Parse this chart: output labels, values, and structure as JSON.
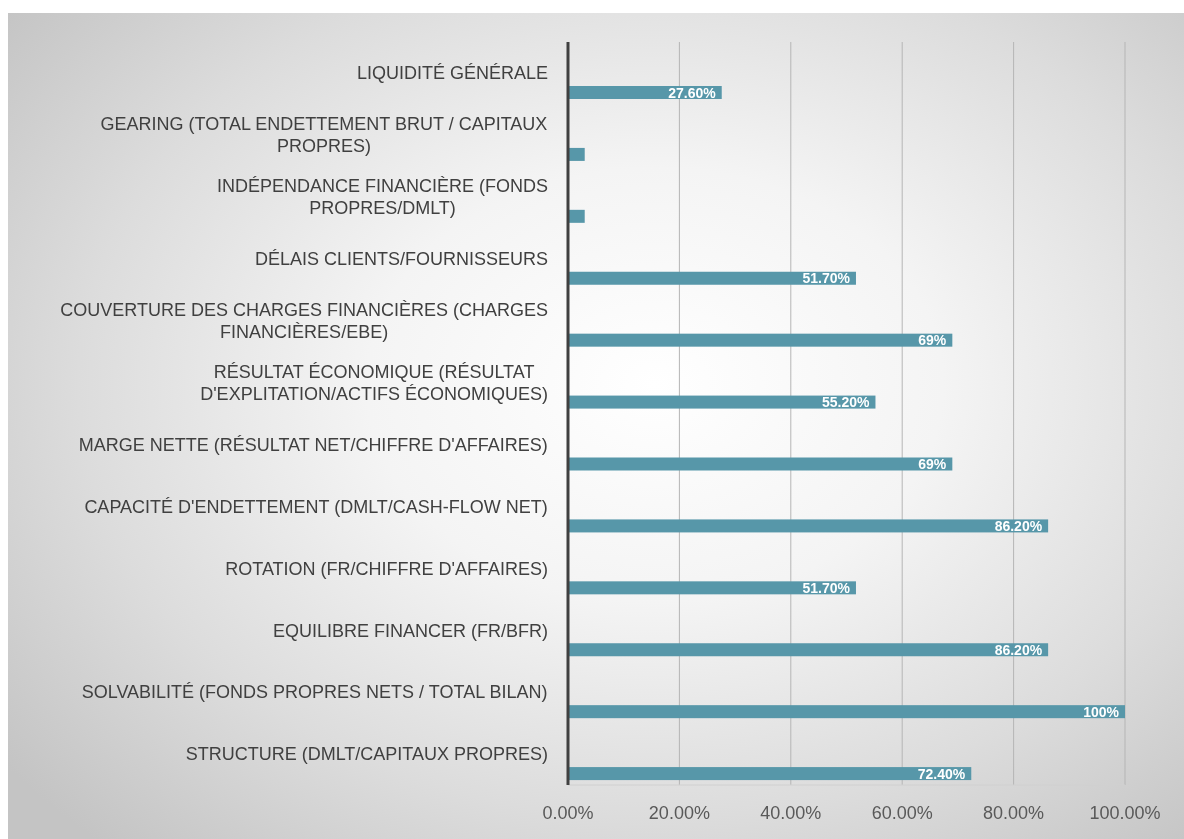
{
  "chart_data": {
    "type": "bar",
    "orientation": "horizontal",
    "categories": [
      "LIQUIDITÉ GÉNÉRALE",
      "GEARING (TOTAL ENDETTEMENT BRUT / CAPITAUX\nPROPRES)",
      "INDÉPENDANCE FINANCIÈRE (FONDS\nPROPRES/DMLT)",
      "DÉLAIS CLIENTS/FOURNISSEURS",
      "COUVERTURE DES CHARGES FINANCIÈRES (CHARGES\nFINANCIÈRES/EBE)",
      "RÉSULTAT ÉCONOMIQUE (RÉSULTAT\nD'EXPLITATION/ACTIFS ÉCONOMIQUES)",
      "MARGE NETTE (RÉSULTAT NET/CHIFFRE D'AFFAIRES)",
      "CAPACITÉ D'ENDETTEMENT (DMLT/CASH-FLOW NET)",
      "ROTATION (FR/CHIFFRE D'AFFAIRES)",
      "EQUILIBRE FINANCER (FR/BFR)",
      "SOLVABILITÉ (FONDS PROPRES NETS / TOTAL BILAN)",
      "STRUCTURE (DMLT/CAPITAUX PROPRES)"
    ],
    "values": [
      27.6,
      3,
      3,
      51.7,
      69,
      55.2,
      69,
      86.2,
      51.7,
      86.2,
      100,
      72.4
    ],
    "color": "#5797a9",
    "value_labels": [
      "27.60%",
      null,
      null,
      "51.70%",
      "69%",
      "55.20%",
      "69%",
      "86.20%",
      "51.70%",
      "86.20%",
      "100%",
      "72.40%"
    ],
    "xlim": [
      0,
      100
    ],
    "xticks": [
      {
        "value": 0,
        "label": "0.00%"
      },
      {
        "value": 20,
        "label": "20.00%"
      },
      {
        "value": 40,
        "label": "40.00%"
      },
      {
        "value": 60,
        "label": "60.00%"
      },
      {
        "value": 80,
        "label": "80.00%"
      },
      {
        "value": 100,
        "label": "100.00%"
      }
    ],
    "grid": "x"
  }
}
